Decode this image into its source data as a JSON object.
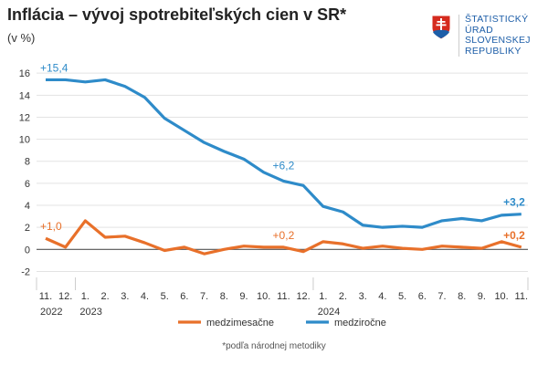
{
  "header": {
    "title": "Inflácia – vývoj spotrebiteľských cien v SR*",
    "unit": "(v %)"
  },
  "logo": {
    "lines": [
      "ŠTATISTICKÝ",
      "ÚRAD",
      "SLOVENSKEJ",
      "REPUBLIKY"
    ]
  },
  "footnote": "*podľa národnej metodiky",
  "chart_data": {
    "type": "line",
    "title": "Inflácia – vývoj spotrebiteľských cien v SR*",
    "ylabel": "(v %)",
    "ylim": [
      -2,
      16
    ],
    "yticks": [
      -2,
      0,
      2,
      4,
      6,
      8,
      10,
      12,
      14,
      16
    ],
    "grid": true,
    "legend": "bottom",
    "categories": [
      "11.",
      "12.",
      "1.",
      "2.",
      "3.",
      "4.",
      "5.",
      "6.",
      "7.",
      "8.",
      "9.",
      "10.",
      "11.",
      "12.",
      "1.",
      "2.",
      "3.",
      "4.",
      "5.",
      "6.",
      "7.",
      "8.",
      "9.",
      "10.",
      "11."
    ],
    "years": [
      {
        "label": "2022",
        "start": 0
      },
      {
        "label": "2023",
        "start": 2
      },
      {
        "label": "2024",
        "start": 14
      }
    ],
    "series": [
      {
        "name": "medzimesačne",
        "color": "#e8702a",
        "values": [
          1.0,
          0.2,
          2.6,
          1.1,
          1.2,
          0.6,
          -0.1,
          0.2,
          -0.4,
          0.0,
          0.3,
          0.2,
          0.2,
          -0.2,
          0.7,
          0.5,
          0.1,
          0.3,
          0.1,
          0.0,
          0.3,
          0.2,
          0.1,
          0.7,
          0.2
        ]
      },
      {
        "name": "medziročne",
        "color": "#2e8bc9",
        "values": [
          15.4,
          15.4,
          15.2,
          15.4,
          14.8,
          13.8,
          11.9,
          10.8,
          9.7,
          8.9,
          8.2,
          7.0,
          6.2,
          5.8,
          3.9,
          3.4,
          2.2,
          2.0,
          2.1,
          2.0,
          2.6,
          2.8,
          2.6,
          3.1,
          3.2
        ]
      }
    ],
    "annotations": [
      {
        "series": 1,
        "index": 0,
        "text": "+15,4"
      },
      {
        "series": 1,
        "index": 12,
        "text": "+6,2"
      },
      {
        "series": 1,
        "index": 24,
        "text": "+3,2",
        "bold": true
      },
      {
        "series": 0,
        "index": 0,
        "text": "+1,0"
      },
      {
        "series": 0,
        "index": 12,
        "text": "+0,2"
      },
      {
        "series": 0,
        "index": 24,
        "text": "+0,2",
        "bold": true
      }
    ]
  }
}
